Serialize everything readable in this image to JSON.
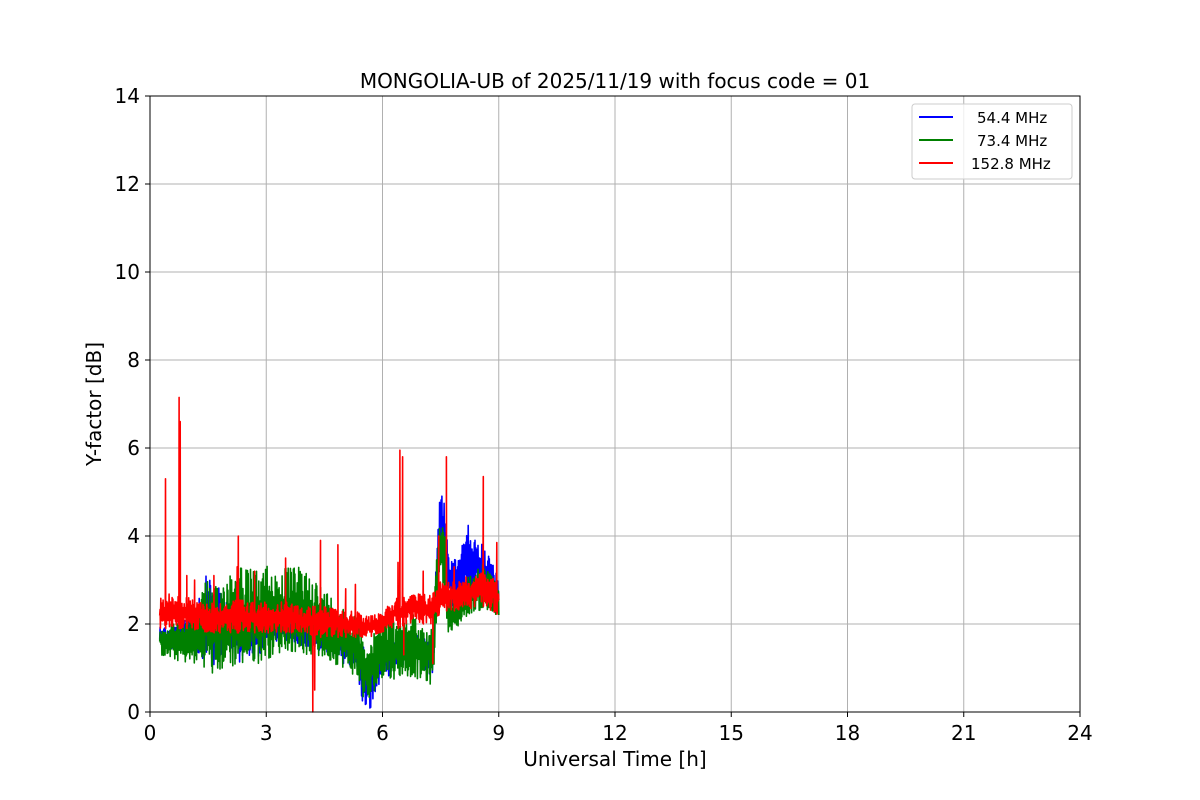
{
  "chart_data": {
    "type": "line",
    "title": "MONGOLIA-UB of 2025/11/19 with focus code = 01",
    "xlabel": "Universal Time [h]",
    "ylabel": "Y-factor [dB]",
    "xlim": [
      0,
      24
    ],
    "ylim": [
      0,
      14
    ],
    "xticks": [
      0,
      3,
      6,
      9,
      12,
      15,
      18,
      21,
      24
    ],
    "yticks": [
      0,
      2,
      4,
      6,
      8,
      10,
      12,
      14
    ],
    "xtick_labels": [
      "0",
      "3",
      "6",
      "9",
      "12",
      "15",
      "18",
      "21",
      "24"
    ],
    "ytick_labels": [
      "0",
      "2",
      "4",
      "6",
      "8",
      "10",
      "12",
      "14"
    ],
    "grid": true,
    "legend_position": "top-right",
    "series": [
      {
        "name": "54.4 MHz",
        "color": "#0000ff",
        "x": [
          0.25,
          0.5,
          1.0,
          1.5,
          1.6,
          1.8,
          2.0,
          2.3,
          2.5,
          2.8,
          3.0,
          3.3,
          3.5,
          4.0,
          4.3,
          4.5,
          5.0,
          5.3,
          5.5,
          5.6,
          5.7,
          5.8,
          6.0,
          6.2,
          6.4,
          6.6,
          6.8,
          7.0,
          7.3,
          7.45,
          7.5,
          7.6,
          7.7,
          7.8,
          8.0,
          8.2,
          8.4,
          8.6,
          8.8,
          9.0
        ],
        "min": [
          1.5,
          1.4,
          1.5,
          1.1,
          0.9,
          1.2,
          1.4,
          1.1,
          1.3,
          1.2,
          1.6,
          1.6,
          1.6,
          1.5,
          1.4,
          1.3,
          1.1,
          1.0,
          0.1,
          0.0,
          0.0,
          0.3,
          0.9,
          0.7,
          1.1,
          1.0,
          1.1,
          1.0,
          0.8,
          3.0,
          4.0,
          3.2,
          2.6,
          2.4,
          2.5,
          2.6,
          2.7,
          2.6,
          2.5,
          2.2
        ],
        "max": [
          2.0,
          1.9,
          2.2,
          3.2,
          3.0,
          2.8,
          2.6,
          2.5,
          2.4,
          2.2,
          2.3,
          2.2,
          2.2,
          2.2,
          2.1,
          2.0,
          1.9,
          1.8,
          1.6,
          1.2,
          1.2,
          1.4,
          1.6,
          1.7,
          1.8,
          1.8,
          1.8,
          1.7,
          1.6,
          4.9,
          5.0,
          4.8,
          3.6,
          3.4,
          3.6,
          4.3,
          3.9,
          3.8,
          3.5,
          3.0
        ]
      },
      {
        "name": "73.4 MHz",
        "color": "#008000",
        "x": [
          0.25,
          0.5,
          1.0,
          1.5,
          1.6,
          1.8,
          2.0,
          2.3,
          2.5,
          2.8,
          3.0,
          3.3,
          3.5,
          4.0,
          4.3,
          4.5,
          5.0,
          5.3,
          5.5,
          5.6,
          5.7,
          5.8,
          6.0,
          6.2,
          6.4,
          6.6,
          6.8,
          7.0,
          7.3,
          7.45,
          7.5,
          7.6,
          7.7,
          7.8,
          8.0,
          8.2,
          8.4,
          8.6,
          8.8,
          9.0
        ],
        "min": [
          1.3,
          1.2,
          1.1,
          1.0,
          0.8,
          0.9,
          1.0,
          1.0,
          1.1,
          1.1,
          1.2,
          1.3,
          1.4,
          1.3,
          1.2,
          1.2,
          1.0,
          0.8,
          0.3,
          0.1,
          0.2,
          0.5,
          0.8,
          0.7,
          0.8,
          0.8,
          0.8,
          0.7,
          0.6,
          2.8,
          3.3,
          2.6,
          1.8,
          1.7,
          2.0,
          2.2,
          2.3,
          2.3,
          2.2,
          2.1
        ],
        "max": [
          2.0,
          2.0,
          2.1,
          3.1,
          2.8,
          2.9,
          3.2,
          3.5,
          3.3,
          3.2,
          3.4,
          3.2,
          3.3,
          3.3,
          3.0,
          2.8,
          2.4,
          2.2,
          1.9,
          1.7,
          1.7,
          1.8,
          2.4,
          2.2,
          2.0,
          2.1,
          2.3,
          2.0,
          1.9,
          4.5,
          4.4,
          4.2,
          2.8,
          2.6,
          2.8,
          3.1,
          3.2,
          3.4,
          3.1,
          3.0
        ]
      },
      {
        "name": "152.8 MHz",
        "color": "#ff0000",
        "x": [
          0.25,
          0.5,
          1.0,
          1.5,
          1.6,
          1.8,
          2.0,
          2.3,
          2.5,
          2.8,
          3.0,
          3.3,
          3.5,
          4.0,
          4.3,
          4.5,
          5.0,
          5.3,
          5.5,
          5.6,
          5.7,
          5.8,
          6.0,
          6.2,
          6.4,
          6.6,
          6.8,
          7.0,
          7.3,
          7.45,
          7.5,
          7.6,
          7.7,
          7.8,
          8.0,
          8.2,
          8.4,
          8.6,
          8.8,
          9.0
        ],
        "min": [
          1.9,
          1.9,
          1.9,
          1.8,
          1.8,
          1.8,
          1.8,
          1.8,
          1.8,
          1.8,
          1.8,
          1.8,
          1.8,
          1.8,
          1.7,
          1.7,
          1.7,
          1.7,
          1.7,
          1.7,
          1.7,
          1.7,
          1.8,
          1.9,
          1.9,
          2.0,
          2.0,
          2.0,
          2.0,
          2.2,
          2.3,
          2.3,
          2.3,
          2.3,
          2.3,
          2.3,
          2.4,
          2.4,
          2.3,
          2.2
        ],
        "max": [
          2.6,
          2.7,
          2.6,
          2.5,
          2.5,
          2.5,
          2.5,
          2.6,
          2.5,
          2.5,
          2.5,
          2.5,
          2.5,
          2.4,
          2.4,
          2.4,
          2.3,
          2.3,
          2.2,
          2.2,
          2.2,
          2.3,
          2.3,
          2.5,
          2.6,
          2.6,
          2.7,
          2.7,
          2.7,
          2.9,
          3.0,
          3.0,
          3.0,
          3.0,
          3.0,
          3.1,
          3.1,
          3.2,
          3.1,
          3.0
        ],
        "spikes": [
          [
            0.4,
            5.3
          ],
          [
            0.75,
            7.15
          ],
          [
            0.78,
            6.6
          ],
          [
            0.95,
            3.1
          ],
          [
            1.15,
            3.0
          ],
          [
            1.65,
            3.1
          ],
          [
            2.25,
            3.3
          ],
          [
            2.28,
            4.0
          ],
          [
            2.7,
            3.2
          ],
          [
            3.5,
            3.5
          ],
          [
            4.4,
            3.9
          ],
          [
            4.85,
            3.8
          ],
          [
            5.05,
            2.8
          ],
          [
            5.3,
            2.9
          ],
          [
            6.4,
            3.4
          ],
          [
            6.45,
            5.95
          ],
          [
            6.52,
            5.8
          ],
          [
            7.05,
            3.2
          ],
          [
            7.45,
            4.0
          ],
          [
            7.65,
            5.8
          ],
          [
            7.85,
            3.3
          ],
          [
            8.6,
            5.35
          ],
          [
            8.95,
            3.85
          ]
        ],
        "dips": [
          [
            4.2,
            0.0
          ],
          [
            4.25,
            0.5
          ],
          [
            7.3,
            1.1
          ],
          [
            6.55,
            1.3
          ]
        ]
      }
    ]
  }
}
